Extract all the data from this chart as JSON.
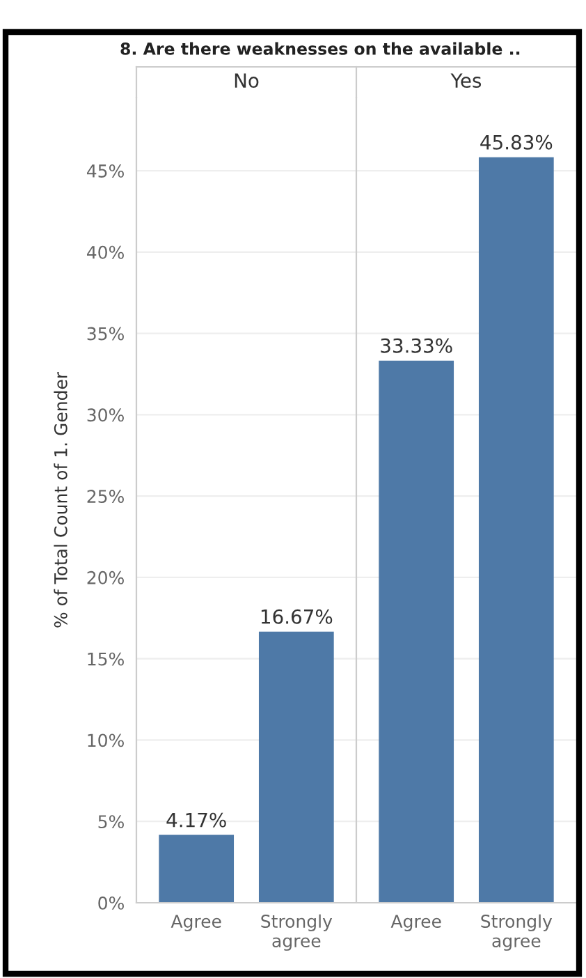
{
  "chart_data": [
    {
      "type": "bar",
      "title": "8. Are there weaknesses on the available ..",
      "subtitle": "No",
      "ylabel": "% of Total Count of 1. Gender",
      "categories": [
        "Agree",
        "Strongly agree"
      ],
      "values": [
        4.17,
        16.67
      ],
      "value_labels": [
        "4.17%",
        "16.67%"
      ],
      "color": "#4e79a7",
      "ylim": [
        0,
        49.5
      ],
      "yticks": [
        {
          "value": 0,
          "label": "0%"
        },
        {
          "value": 5,
          "label": "5%"
        },
        {
          "value": 10,
          "label": "10%"
        },
        {
          "value": 15,
          "label": "15%"
        },
        {
          "value": 20,
          "label": "20%"
        },
        {
          "value": 25,
          "label": "25%"
        },
        {
          "value": 30,
          "label": "30%"
        },
        {
          "value": 35,
          "label": "35%"
        },
        {
          "value": 40,
          "label": "40%"
        },
        {
          "value": 45,
          "label": "45%"
        }
      ],
      "grid": "y"
    },
    {
      "type": "bar",
      "subtitle": "Yes",
      "categories": [
        "Agree",
        "Strongly agree"
      ],
      "values": [
        33.33,
        45.83
      ],
      "value_labels": [
        "33.33%",
        "45.83%"
      ],
      "color": "#4e79a7",
      "ylim": [
        0,
        49.5
      ],
      "yticks": [
        {
          "value": 0,
          "label": null
        },
        {
          "value": 5,
          "label": null
        },
        {
          "value": 10,
          "label": null
        },
        {
          "value": 15,
          "label": null
        },
        {
          "value": 20,
          "label": null
        },
        {
          "value": 25,
          "label": null
        },
        {
          "value": 30,
          "label": null
        },
        {
          "value": 35,
          "label": null
        },
        {
          "value": 40,
          "label": null
        },
        {
          "value": 45,
          "label": null
        }
      ],
      "grid": "y",
      "tick_labels": "x"
    }
  ]
}
